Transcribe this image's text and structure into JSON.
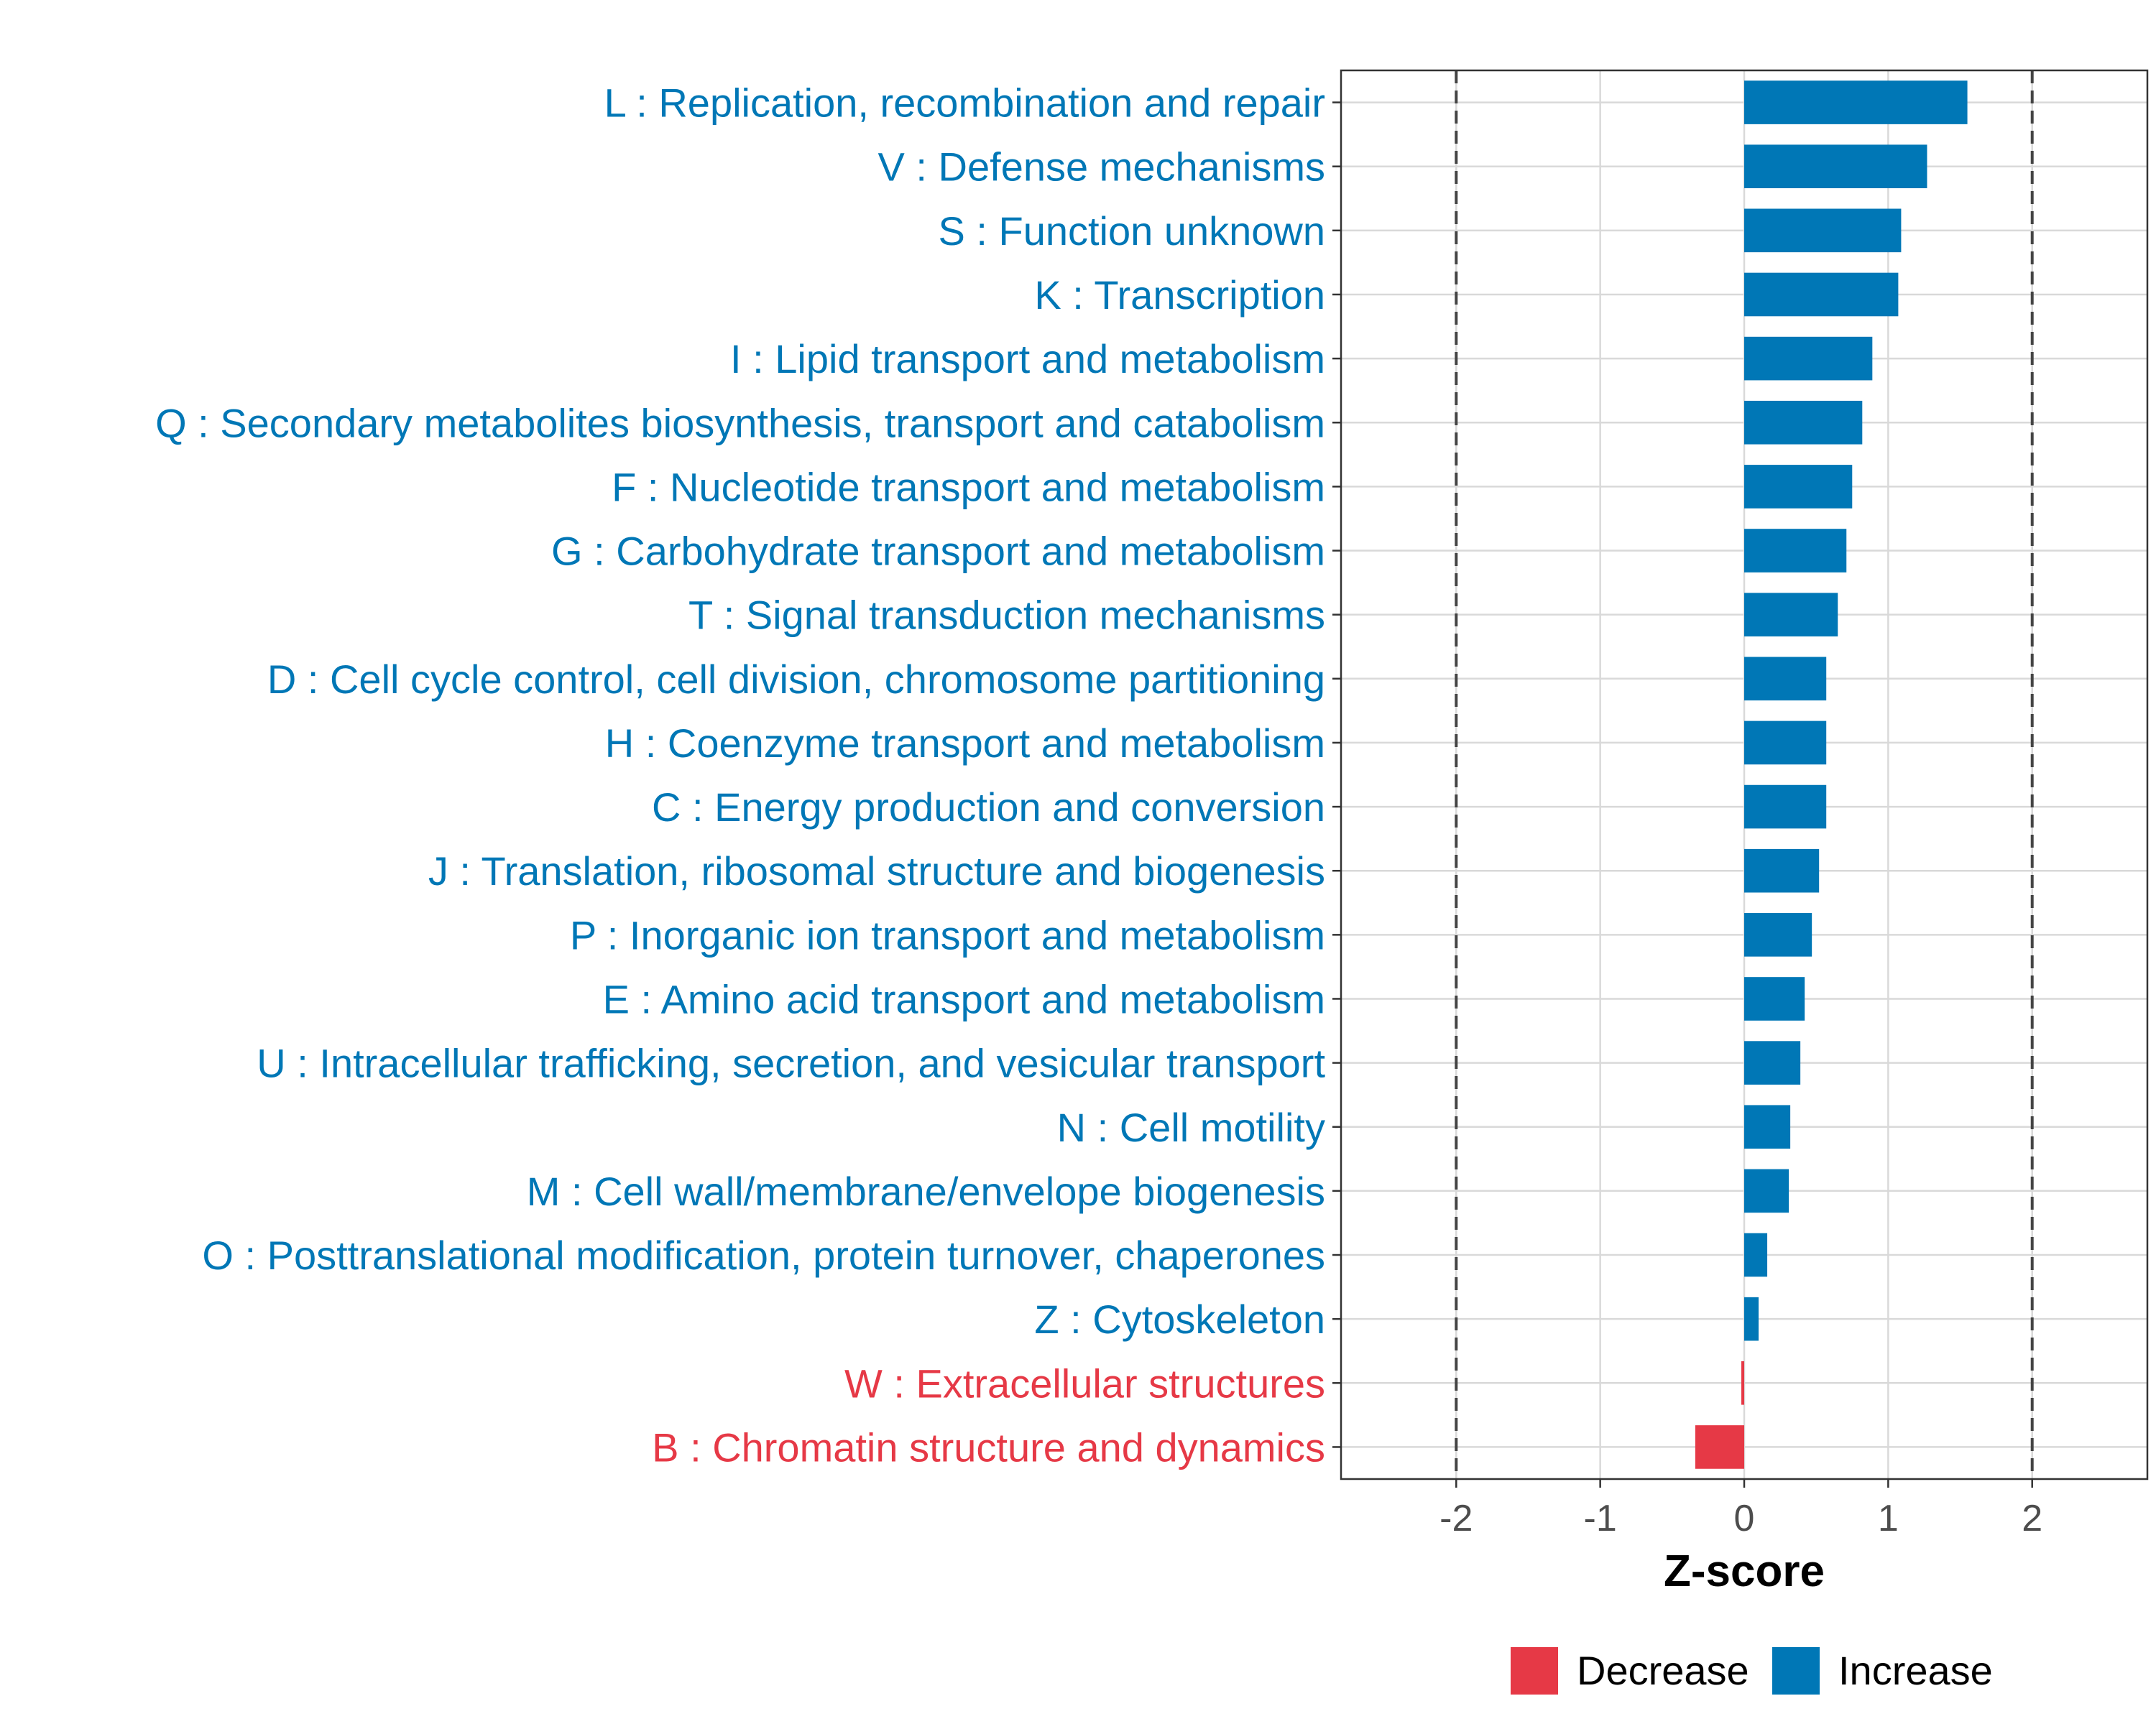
{
  "chart_data": {
    "type": "bar",
    "orientation": "horizontal",
    "xlabel": "Z-score",
    "xlim": [
      -2.8,
      2.8
    ],
    "xticks": [
      -2,
      -1,
      0,
      1,
      2
    ],
    "xtick_labels": [
      "-2",
      "-1",
      "0",
      "1",
      "2"
    ],
    "reference_lines": [
      -2,
      2
    ],
    "grid": true,
    "legend_position": "bottom",
    "legend": [
      {
        "label": "Decrease",
        "color": "#E63946"
      },
      {
        "label": "Increase",
        "color": "#0077B6"
      }
    ],
    "categories": [
      "L : Replication, recombination and repair",
      "V : Defense mechanisms",
      "S : Function unknown",
      "K : Transcription",
      "I : Lipid transport and metabolism",
      "Q : Secondary metabolites biosynthesis, transport and catabolism",
      "F : Nucleotide transport and metabolism",
      "G : Carbohydrate transport and metabolism",
      "T : Signal transduction mechanisms",
      "D : Cell cycle control, cell division, chromosome partitioning",
      "H : Coenzyme transport and metabolism",
      "C : Energy production and conversion",
      "J : Translation, ribosomal structure and biogenesis",
      "P : Inorganic ion transport and metabolism",
      "E : Amino acid transport and metabolism",
      "U : Intracellular trafficking, secretion, and vesicular transport",
      "N : Cell motility",
      "M : Cell wall/membrane/envelope biogenesis",
      "O : Posttranslational modification, protein turnover, chaperones",
      "Z : Cytoskeleton",
      "W : Extracellular structures",
      "B : Chromatin structure and dynamics"
    ],
    "values": [
      1.55,
      1.27,
      1.09,
      1.07,
      0.89,
      0.82,
      0.75,
      0.71,
      0.65,
      0.57,
      0.57,
      0.57,
      0.52,
      0.47,
      0.42,
      0.39,
      0.32,
      0.31,
      0.16,
      0.1,
      -0.02,
      -0.34
    ],
    "direction": [
      "Increase",
      "Increase",
      "Increase",
      "Increase",
      "Increase",
      "Increase",
      "Increase",
      "Increase",
      "Increase",
      "Increase",
      "Increase",
      "Increase",
      "Increase",
      "Increase",
      "Increase",
      "Increase",
      "Increase",
      "Increase",
      "Increase",
      "Increase",
      "Decrease",
      "Decrease"
    ]
  }
}
